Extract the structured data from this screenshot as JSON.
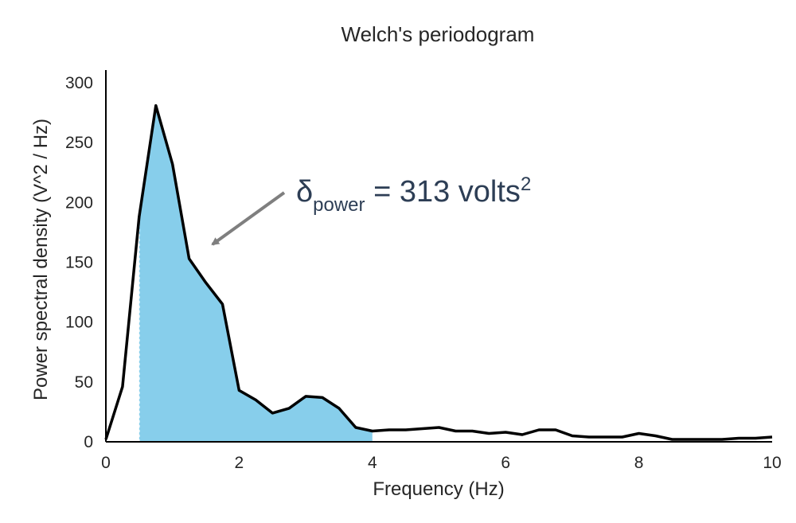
{
  "chart_data": {
    "type": "area",
    "title": "Welch's periodogram",
    "xlabel": "Frequency (Hz)",
    "ylabel": "Power spectral density (V^2 / Hz)",
    "xlim": [
      0,
      10
    ],
    "ylim": [
      0,
      300
    ],
    "x_ticks": [
      "0",
      "2",
      "4",
      "6",
      "8",
      "10"
    ],
    "y_ticks": [
      "0",
      "50",
      "100",
      "150",
      "200",
      "250",
      "300"
    ],
    "grid": false,
    "legend": "none",
    "series": [
      {
        "x": [
          0,
          0.25,
          0.5,
          0.75,
          1.0,
          1.25,
          1.5,
          1.75,
          2.0,
          2.25,
          2.5,
          2.75,
          3.0,
          3.25,
          3.5,
          3.75,
          4.0,
          4.25,
          4.5,
          4.75,
          5.0,
          5.25,
          5.5,
          5.75,
          6.0,
          6.25,
          6.5,
          6.75,
          7.0,
          7.25,
          7.5,
          7.75,
          8.0,
          8.25,
          8.5,
          8.75,
          9.0,
          9.25,
          9.5,
          9.75,
          10.0
        ],
        "y": [
          2,
          46,
          188,
          281,
          232,
          153,
          133,
          115,
          43,
          35,
          24,
          28,
          38,
          37,
          28,
          12,
          9,
          10,
          10,
          11,
          12,
          9,
          9,
          7,
          8,
          6,
          10,
          10,
          5,
          4,
          4,
          4,
          7,
          5,
          2,
          2,
          2,
          2,
          3,
          3,
          4
        ],
        "line_color": "#000000"
      }
    ],
    "shaded_band": {
      "x_start": 0.5,
      "x_end": 4.0,
      "color": "#87ceeb"
    },
    "annotation": {
      "symbol": "δ",
      "subscript": "power",
      "text": " = 313 volts",
      "superscript": "2",
      "arrow_target": {
        "x": 1.6,
        "y": 165
      }
    }
  }
}
